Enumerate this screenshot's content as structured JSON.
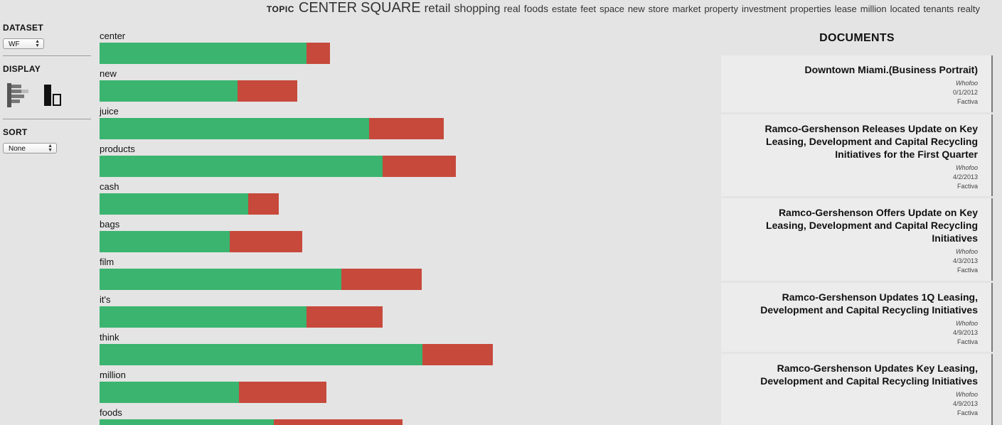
{
  "topic": {
    "label": "TOPIC",
    "words": [
      {
        "text": "CENTER",
        "size": 20
      },
      {
        "text": "SQUARE",
        "size": 20
      },
      {
        "text": "retail",
        "size": 17
      },
      {
        "text": "shopping",
        "size": 16
      },
      {
        "text": "real",
        "size": 14
      },
      {
        "text": "foods",
        "size": 14
      },
      {
        "text": "estate",
        "size": 13
      },
      {
        "text": "feet",
        "size": 13
      },
      {
        "text": "space",
        "size": 13
      },
      {
        "text": "new",
        "size": 13
      },
      {
        "text": "store",
        "size": 13
      },
      {
        "text": "market",
        "size": 13
      },
      {
        "text": "property",
        "size": 13
      },
      {
        "text": "investment",
        "size": 13
      },
      {
        "text": "properties",
        "size": 13
      },
      {
        "text": "lease",
        "size": 13
      },
      {
        "text": "million",
        "size": 13
      },
      {
        "text": "located",
        "size": 13
      },
      {
        "text": "tenants",
        "size": 13
      },
      {
        "text": "realty",
        "size": 13
      }
    ]
  },
  "controls": {
    "dataset_label": "DATASET",
    "dataset_value": "WF",
    "display_label": "DISPLAY",
    "display_icons": [
      "horizontal-bars-icon",
      "vertical-bars-icon"
    ],
    "sort_label": "SORT",
    "sort_value": "None"
  },
  "chart_data": {
    "type": "bar",
    "orientation": "horizontal",
    "stacked": true,
    "colors": {
      "green": "#3ab46f",
      "red": "#c6493c"
    },
    "categories": [
      "center",
      "new",
      "juice",
      "products",
      "cash",
      "bags",
      "film",
      "it's",
      "think",
      "million",
      "foods"
    ],
    "series": [
      {
        "values": [
          291,
          194,
          379,
          398,
          209,
          183,
          340,
          291,
          454,
          196,
          245
        ]
      },
      {
        "values": [
          33,
          84,
          105,
          103,
          43,
          102,
          113,
          107,
          99,
          123,
          181
        ]
      }
    ]
  },
  "documents": {
    "title": "DOCUMENTS",
    "items": [
      {
        "title": "Downtown Miami.(Business Portrait)",
        "source": "Whofoo",
        "date": "0/1/2012",
        "database": "Factiva"
      },
      {
        "title": "Ramco-Gershenson Releases Update on Key Leasing, Development and Capital Recycling Initiatives for the First Quarter",
        "source": "Whofoo",
        "date": "4/2/2013",
        "database": "Factiva"
      },
      {
        "title": "Ramco-Gershenson Offers Update on Key Leasing, Development and Capital Recycling Initiatives",
        "source": "Whofoo",
        "date": "4/3/2013",
        "database": "Factiva"
      },
      {
        "title": "Ramco-Gershenson Updates 1Q Leasing, Development and Capital Recycling Initiatives",
        "source": "Whofoo",
        "date": "4/9/2013",
        "database": "Factiva"
      },
      {
        "title": "Ramco-Gershenson Updates Key Leasing, Development and Capital Recycling Initiatives",
        "source": "Whofoo",
        "date": "4/9/2013",
        "database": "Factiva"
      }
    ]
  }
}
